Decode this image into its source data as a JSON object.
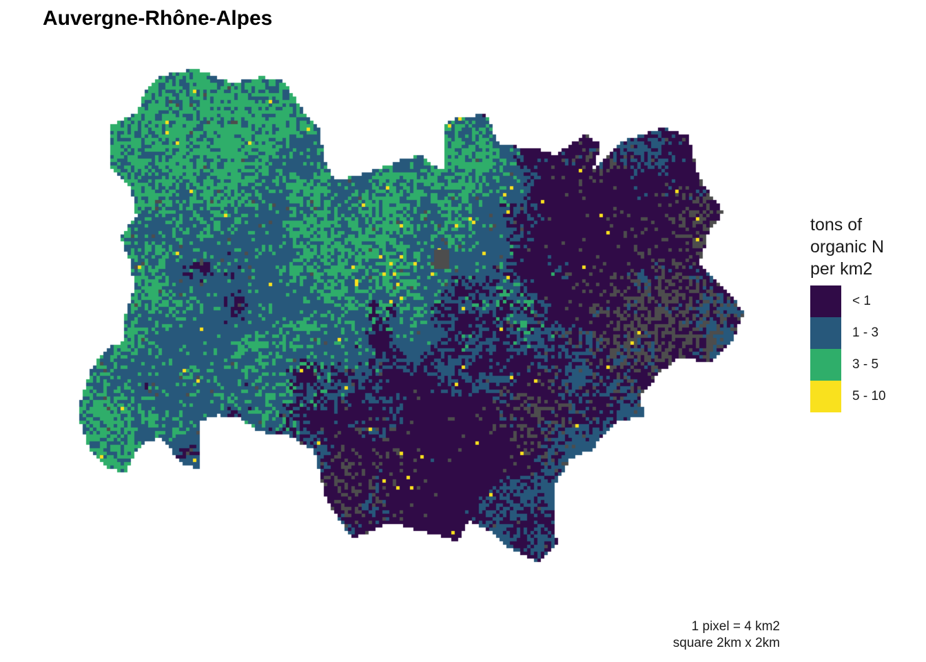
{
  "map": {
    "title": "Auvergne-Rhône-Alpes",
    "region": "Auvergne-Rhône-Alpes",
    "na_color": "#4d4d4d",
    "legend": {
      "title_lines": [
        "tons of",
        "organic N",
        "per km2"
      ],
      "items": [
        {
          "label": "< 1",
          "color": "#300b47"
        },
        {
          "label": "1 - 3",
          "color": "#27587b"
        },
        {
          "label": "3 - 5",
          "color": "#2fae6a"
        },
        {
          "label": "5 - 10",
          "color": "#f9e11e"
        }
      ]
    },
    "caption_lines": [
      "1 pixel = 4 km2",
      "square 2km x 2km"
    ]
  }
}
